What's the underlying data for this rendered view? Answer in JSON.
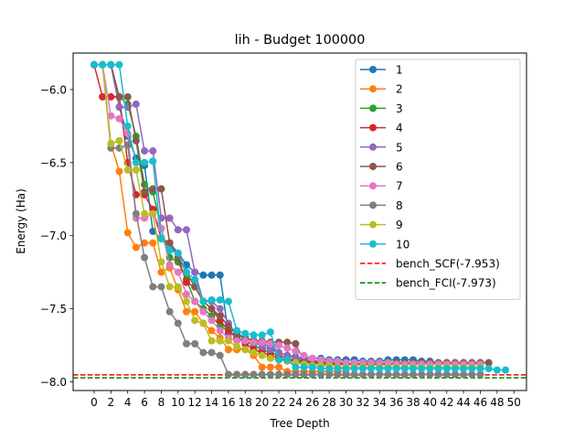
{
  "chart_data": {
    "type": "line",
    "title": "lih - Budget  100000",
    "xlabel": "Tree Depth",
    "ylabel": "Energy (Ha)",
    "xlim": [
      -2.5,
      51.5
    ],
    "ylim": [
      -8.06,
      -5.75
    ],
    "xticks": [
      0,
      2,
      4,
      6,
      8,
      10,
      12,
      14,
      16,
      18,
      20,
      22,
      24,
      26,
      28,
      30,
      32,
      34,
      36,
      38,
      40,
      42,
      44,
      46,
      48,
      50
    ],
    "yticks": [
      -8.0,
      -7.5,
      -7.0,
      -6.5,
      -6.0
    ],
    "ytick_labels": [
      "−8.0",
      "−7.5",
      "−7.0",
      "−6.5",
      "−6.0"
    ],
    "grid": false,
    "legend_position": "upper right",
    "series": [
      {
        "name": "1",
        "color": "#1f77b4",
        "marker": "o",
        "x": [
          0,
          1,
          2,
          3,
          4,
          5,
          6,
          7,
          8,
          9,
          10,
          11,
          12,
          13,
          14,
          15,
          16,
          17,
          18,
          19,
          20,
          21,
          22,
          23,
          24,
          25,
          26,
          27,
          28,
          29,
          30,
          31,
          32,
          33,
          34,
          35,
          36,
          37,
          38,
          39,
          40,
          41,
          42,
          43,
          44,
          45,
          46,
          47
        ],
        "y": [
          -5.83,
          -5.83,
          -5.83,
          -6.12,
          -6.32,
          -6.47,
          -6.52,
          -6.97,
          -7.02,
          -7.05,
          -7.12,
          -7.2,
          -7.25,
          -7.27,
          -7.27,
          -7.27,
          -7.67,
          -7.67,
          -7.7,
          -7.72,
          -7.74,
          -7.76,
          -7.8,
          -7.82,
          -7.83,
          -7.84,
          -7.84,
          -7.84,
          -7.85,
          -7.85,
          -7.85,
          -7.85,
          -7.86,
          -7.86,
          -7.86,
          -7.85,
          -7.85,
          -7.85,
          -7.85,
          -7.86,
          -7.86,
          -7.87,
          -7.87,
          -7.87,
          -7.87,
          -7.87,
          -7.87,
          -7.87
        ]
      },
      {
        "name": "2",
        "color": "#ff7f0e",
        "marker": "o",
        "x": [
          0,
          1,
          2,
          3,
          4,
          5,
          6,
          7,
          8,
          9,
          10,
          11,
          12,
          13,
          14,
          15,
          16,
          17,
          18,
          19,
          20,
          21,
          22,
          23,
          24,
          25,
          26,
          27,
          28,
          29,
          30
        ],
        "y": [
          -5.83,
          -5.83,
          -6.37,
          -6.56,
          -6.98,
          -7.08,
          -7.05,
          -7.05,
          -7.25,
          -7.22,
          -7.37,
          -7.52,
          -7.52,
          -7.6,
          -7.65,
          -7.7,
          -7.78,
          -7.78,
          -7.78,
          -7.82,
          -7.9,
          -7.9,
          -7.9,
          -7.93,
          -7.93,
          -7.93,
          -7.93,
          -7.93,
          -7.93,
          -7.93,
          -7.93
        ]
      },
      {
        "name": "3",
        "color": "#2ca02c",
        "marker": "o",
        "x": [
          0,
          1,
          2,
          3,
          4,
          5,
          6,
          7,
          8,
          9,
          10,
          11,
          12,
          13,
          14,
          15,
          16,
          17,
          18,
          19,
          20,
          21,
          22,
          23,
          24,
          25,
          26,
          27,
          28,
          29,
          30,
          31,
          32,
          33,
          34,
          35,
          36,
          37,
          38,
          39,
          40,
          41,
          42,
          43,
          44,
          45,
          46
        ],
        "y": [
          -5.83,
          -5.83,
          -5.83,
          -6.05,
          -6.1,
          -6.32,
          -6.65,
          -6.7,
          -6.95,
          -7.15,
          -7.18,
          -7.3,
          -7.45,
          -7.5,
          -7.55,
          -7.62,
          -7.65,
          -7.7,
          -7.72,
          -7.75,
          -7.78,
          -7.8,
          -7.82,
          -7.84,
          -7.85,
          -7.86,
          -7.86,
          -7.87,
          -7.87,
          -7.87,
          -7.87,
          -7.88,
          -7.88,
          -7.88,
          -7.88,
          -7.88,
          -7.88,
          -7.88,
          -7.88,
          -7.88,
          -7.88,
          -7.88,
          -7.88,
          -7.88,
          -7.88,
          -7.88,
          -7.88
        ]
      },
      {
        "name": "4",
        "color": "#d62728",
        "marker": "o",
        "x": [
          0,
          1,
          2,
          3,
          4,
          5,
          6,
          7,
          8,
          9,
          10,
          11,
          12,
          13,
          14,
          15,
          16,
          17,
          18,
          19,
          20,
          21,
          22,
          23,
          24,
          25,
          26,
          27,
          28,
          29,
          30,
          31,
          32,
          33,
          34,
          35,
          36,
          37,
          38,
          39,
          40
        ],
        "y": [
          -5.83,
          -6.05,
          -6.05,
          -6.05,
          -6.5,
          -6.72,
          -6.72,
          -6.82,
          -7.02,
          -7.05,
          -7.15,
          -7.32,
          -7.35,
          -7.45,
          -7.5,
          -7.58,
          -7.65,
          -7.7,
          -7.74,
          -7.78,
          -7.8,
          -7.82,
          -7.84,
          -7.85,
          -7.86,
          -7.87,
          -7.87,
          -7.88,
          -7.88,
          -7.88,
          -7.88,
          -7.88,
          -7.88,
          -7.88,
          -7.88,
          -7.88,
          -7.88,
          -7.88,
          -7.88,
          -7.88,
          -7.88
        ]
      },
      {
        "name": "5",
        "color": "#9467bd",
        "marker": "o",
        "x": [
          0,
          1,
          2,
          3,
          4,
          5,
          6,
          7,
          8,
          9,
          10,
          11,
          12,
          13,
          14,
          15,
          16,
          17,
          18,
          19,
          20,
          21,
          22,
          23,
          24,
          25,
          26,
          27,
          28,
          29,
          30,
          31,
          32,
          33,
          34,
          35,
          36,
          37,
          38,
          39,
          40,
          41,
          42,
          43,
          44,
          45,
          46
        ],
        "y": [
          -5.83,
          -5.83,
          -5.83,
          -6.12,
          -6.12,
          -6.1,
          -6.42,
          -6.42,
          -6.88,
          -6.88,
          -6.96,
          -6.96,
          -7.25,
          -7.45,
          -7.45,
          -7.5,
          -7.6,
          -7.68,
          -7.7,
          -7.72,
          -7.76,
          -7.78,
          -7.8,
          -7.82,
          -7.84,
          -7.85,
          -7.86,
          -7.86,
          -7.87,
          -7.87,
          -7.87,
          -7.87,
          -7.87,
          -7.87,
          -7.87,
          -7.87,
          -7.87,
          -7.87,
          -7.87,
          -7.87,
          -7.87,
          -7.87,
          -7.87,
          -7.87,
          -7.87,
          -7.87,
          -7.87
        ]
      },
      {
        "name": "6",
        "color": "#8c564b",
        "marker": "o",
        "x": [
          0,
          1,
          2,
          3,
          4,
          5,
          6,
          7,
          8,
          9,
          10,
          11,
          12,
          13,
          14,
          15,
          16,
          17,
          18,
          19,
          20,
          21,
          22,
          23,
          24,
          25,
          26,
          27,
          28,
          29,
          30,
          31,
          32,
          33,
          34,
          35,
          36,
          37,
          38,
          39,
          40,
          41,
          42,
          43,
          44,
          45,
          46,
          47
        ],
        "y": [
          -5.83,
          -5.83,
          -5.83,
          -6.05,
          -6.05,
          -6.35,
          -6.7,
          -6.68,
          -6.68,
          -7.05,
          -7.15,
          -7.25,
          -7.35,
          -7.45,
          -7.5,
          -7.55,
          -7.62,
          -7.68,
          -7.7,
          -7.72,
          -7.72,
          -7.73,
          -7.73,
          -7.73,
          -7.74,
          -7.86,
          -7.86,
          -7.86,
          -7.86,
          -7.87,
          -7.87,
          -7.87,
          -7.87,
          -7.87,
          -7.87,
          -7.87,
          -7.87,
          -7.87,
          -7.87,
          -7.87,
          -7.87,
          -7.87,
          -7.87,
          -7.87,
          -7.87,
          -7.87,
          -7.87,
          -7.87
        ]
      },
      {
        "name": "7",
        "color": "#e377c2",
        "marker": "o",
        "x": [
          0,
          1,
          2,
          3,
          4,
          5,
          6,
          7,
          8,
          9,
          10,
          11,
          12,
          13,
          14,
          15,
          16,
          17,
          18,
          19,
          20,
          21,
          22,
          23,
          24,
          25,
          26,
          27,
          28,
          29,
          30,
          31,
          32,
          33,
          34,
          35,
          36,
          37,
          38,
          39,
          40,
          41,
          42,
          43,
          44,
          45,
          46
        ],
        "y": [
          -5.83,
          -5.83,
          -6.18,
          -6.2,
          -6.3,
          -6.88,
          -6.88,
          -6.85,
          -6.95,
          -7.2,
          -7.25,
          -7.4,
          -7.45,
          -7.52,
          -7.58,
          -7.65,
          -7.7,
          -7.72,
          -7.72,
          -7.73,
          -7.73,
          -7.74,
          -7.75,
          -7.77,
          -7.79,
          -7.82,
          -7.84,
          -7.85,
          -7.86,
          -7.86,
          -7.87,
          -7.87,
          -7.87,
          -7.87,
          -7.87,
          -7.87,
          -7.88,
          -7.88,
          -7.88,
          -7.88,
          -7.88,
          -7.88,
          -7.88,
          -7.88,
          -7.88,
          -7.88,
          -7.88
        ]
      },
      {
        "name": "8",
        "color": "#7f7f7f",
        "marker": "o",
        "x": [
          0,
          1,
          2,
          3,
          4,
          5,
          6,
          7,
          8,
          9,
          10,
          11,
          12,
          13,
          14,
          15,
          16,
          17,
          18,
          19,
          20,
          21,
          22,
          23,
          24,
          25,
          26,
          27,
          28,
          29,
          30,
          31,
          32,
          33,
          34,
          35,
          36,
          37,
          38,
          39,
          40,
          41,
          42,
          43,
          44,
          45,
          46
        ],
        "y": [
          -5.83,
          -5.83,
          -6.4,
          -6.4,
          -6.38,
          -6.85,
          -7.15,
          -7.35,
          -7.35,
          -7.52,
          -7.6,
          -7.74,
          -7.74,
          -7.8,
          -7.8,
          -7.82,
          -7.95,
          -7.95,
          -7.95,
          -7.95,
          -7.95,
          -7.95,
          -7.95,
          -7.95,
          -7.95,
          -7.95,
          -7.95,
          -7.95,
          -7.95,
          -7.95,
          -7.95,
          -7.95,
          -7.95,
          -7.95,
          -7.95,
          -7.95,
          -7.95,
          -7.95,
          -7.95,
          -7.95,
          -7.95,
          -7.95,
          -7.95,
          -7.95,
          -7.95,
          -7.95,
          -7.95
        ]
      },
      {
        "name": "9",
        "color": "#bcbd22",
        "marker": "o",
        "x": [
          0,
          1,
          2,
          3,
          4,
          5,
          6,
          7,
          8,
          9,
          10,
          11,
          12,
          13,
          14,
          15,
          16,
          17,
          18,
          19,
          20,
          21,
          22,
          23,
          24,
          25,
          26,
          27,
          28,
          29,
          30,
          31,
          32,
          33,
          34,
          35,
          36,
          37,
          38,
          39,
          40,
          41,
          42,
          43,
          44,
          45,
          46
        ],
        "y": [
          -5.83,
          -5.83,
          -6.37,
          -6.35,
          -6.55,
          -6.55,
          -6.85,
          -6.85,
          -7.18,
          -7.35,
          -7.35,
          -7.45,
          -7.58,
          -7.6,
          -7.72,
          -7.72,
          -7.72,
          -7.76,
          -7.78,
          -7.8,
          -7.82,
          -7.84,
          -7.85,
          -7.86,
          -7.87,
          -7.88,
          -7.89,
          -7.89,
          -7.89,
          -7.9,
          -7.9,
          -7.9,
          -7.9,
          -7.9,
          -7.9,
          -7.9,
          -7.9,
          -7.9,
          -7.9,
          -7.9,
          -7.9,
          -7.9,
          -7.9,
          -7.9,
          -7.9,
          -7.9,
          -7.9
        ]
      },
      {
        "name": "10",
        "color": "#17becf",
        "marker": "o",
        "x": [
          0,
          1,
          2,
          3,
          4,
          5,
          6,
          7,
          8,
          9,
          10,
          11,
          12,
          13,
          14,
          15,
          16,
          17,
          18,
          19,
          20,
          21,
          22,
          23,
          24,
          25,
          26,
          27,
          28,
          29,
          30,
          31,
          32,
          33,
          34,
          35,
          36,
          37,
          38,
          39,
          40,
          41,
          42,
          43,
          44,
          45,
          46,
          47,
          48,
          49
        ],
        "y": [
          -5.83,
          -5.83,
          -5.83,
          -5.83,
          -6.25,
          -6.5,
          -6.5,
          -6.49,
          -7.02,
          -7.1,
          -7.12,
          -7.25,
          -7.3,
          -7.45,
          -7.44,
          -7.44,
          -7.45,
          -7.65,
          -7.67,
          -7.68,
          -7.68,
          -7.66,
          -7.85,
          -7.85,
          -7.9,
          -7.9,
          -7.9,
          -7.91,
          -7.91,
          -7.91,
          -7.91,
          -7.91,
          -7.91,
          -7.91,
          -7.91,
          -7.91,
          -7.91,
          -7.91,
          -7.91,
          -7.91,
          -7.91,
          -7.91,
          -7.91,
          -7.91,
          -7.91,
          -7.91,
          -7.91,
          -7.91,
          -7.92,
          -7.92
        ]
      }
    ],
    "reference_lines": [
      {
        "name": "bench_SCF(-7.953)",
        "y": -7.953,
        "color": "#ff0000",
        "style": "dashed"
      },
      {
        "name": "bench_FCI(-7.973)",
        "y": -7.973,
        "color": "#008000",
        "style": "dashed"
      }
    ]
  }
}
